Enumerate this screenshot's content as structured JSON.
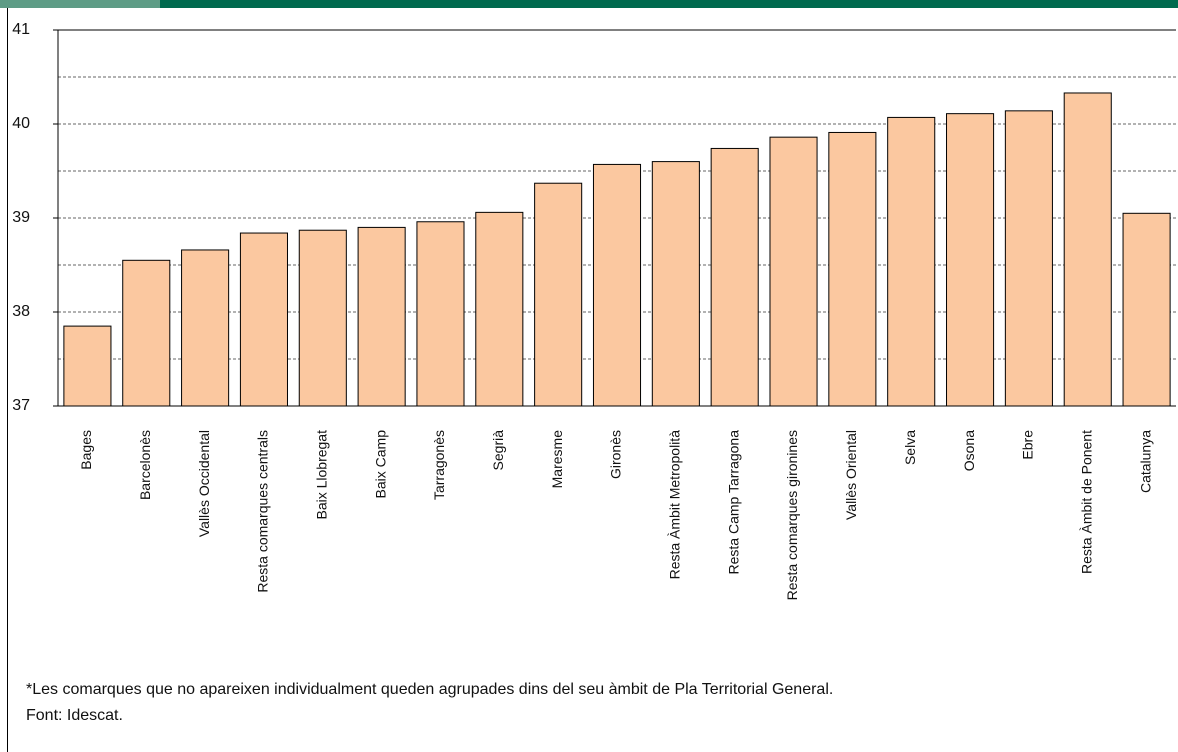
{
  "chart_data": {
    "type": "bar",
    "categories": [
      "Bages",
      "Barcelonès",
      "Vallès Occidental",
      "Resta comarques centrals",
      "Baix Llobregat",
      "Baix Camp",
      "Tarragonès",
      "Segrià",
      "Maresme",
      "Gironès",
      "Resta Àmbit Metropolità",
      "Resta Camp Tarragona",
      "Resta comarques gironines",
      "Vallès Oriental",
      "Selva",
      "Osona",
      "Ebre",
      "Resta Àmbit de Ponent",
      "Catalunya"
    ],
    "values": [
      37.85,
      38.55,
      38.66,
      38.84,
      38.87,
      38.9,
      38.96,
      39.06,
      39.37,
      39.57,
      39.6,
      39.74,
      39.86,
      39.91,
      40.07,
      40.11,
      40.14,
      40.33,
      39.05
    ],
    "color": "#fbc8a0",
    "ylim": [
      37,
      41
    ],
    "yticks": [
      37,
      38,
      39,
      40,
      41
    ],
    "minor_yticks": [
      37.5,
      38.5,
      39.5,
      40.5
    ],
    "grid": true,
    "notes": [
      "*Les comarques que no apareixen individualment queden agrupades dins del seu àmbit de Pla Territorial General.",
      "Font: Idescat."
    ]
  }
}
